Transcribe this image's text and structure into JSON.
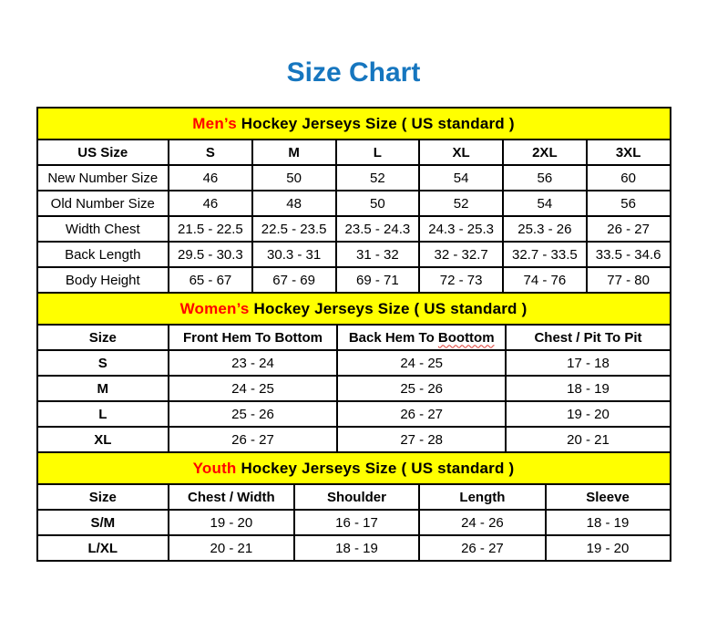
{
  "page": {
    "title": "Size Chart"
  },
  "colors": {
    "title_blue": "#1676bf",
    "banner_yellow": "#ffff00",
    "highlight_red": "#ff0000",
    "squiggle_red": "#dd3b33"
  },
  "tables": [
    {
      "id": "mens",
      "banner": {
        "highlight": "Men’s",
        "rest": " Hockey Jerseys Size ( US standard )"
      },
      "columns": [
        "US Size",
        "S",
        "M",
        "L",
        "XL",
        "2XL",
        "3XL"
      ],
      "rows": [
        {
          "label": "New Number Size",
          "values": [
            "46",
            "50",
            "52",
            "54",
            "56",
            "60"
          ]
        },
        {
          "label": "Old Number Size",
          "values": [
            "46",
            "48",
            "50",
            "52",
            "54",
            "56"
          ]
        },
        {
          "label": "Width Chest",
          "values": [
            "21.5 - 22.5",
            "22.5 - 23.5",
            "23.5 - 24.3",
            "24.3 - 25.3",
            "25.3 - 26",
            "26 - 27"
          ]
        },
        {
          "label": "Back Length",
          "values": [
            "29.5 - 30.3",
            "30.3 - 31",
            "31 - 32",
            "32 - 32.7",
            "32.7 - 33.5",
            "33.5 - 34.6"
          ]
        },
        {
          "label": "Body Height",
          "values": [
            "65 - 67",
            "67 - 69",
            "69 - 71",
            "72 - 73",
            "74 - 76",
            "77 - 80"
          ]
        }
      ]
    },
    {
      "id": "womens",
      "banner": {
        "highlight": "Women’s",
        "rest": " Hockey Jerseys Size ( US standard )"
      },
      "columns": [
        "Size",
        "Front Hem To Bottom",
        "Back Hem To Boottom",
        "Chest / Pit To Pit"
      ],
      "spellcheck_word": "Boottom",
      "rows": [
        {
          "label": "S",
          "values": [
            "23 - 24",
            "24 - 25",
            "17 - 18"
          ]
        },
        {
          "label": "M",
          "values": [
            "24 - 25",
            "25 - 26",
            "18 - 19"
          ]
        },
        {
          "label": "L",
          "values": [
            "25 - 26",
            "26 - 27",
            "19 - 20"
          ]
        },
        {
          "label": "XL",
          "values": [
            "26 - 27",
            "27 - 28",
            "20 - 21"
          ]
        }
      ]
    },
    {
      "id": "youth",
      "banner": {
        "highlight": "Youth",
        "rest": " Hockey Jerseys Size ( US standard )"
      },
      "columns": [
        "Size",
        "Chest / Width",
        "Shoulder",
        "Length",
        "Sleeve"
      ],
      "rows": [
        {
          "label": "S/M",
          "values": [
            "19 - 20",
            "16 - 17",
            "24 - 26",
            "18 - 19"
          ]
        },
        {
          "label": "L/XL",
          "values": [
            "20 - 21",
            "18 - 19",
            "26 - 27",
            "19 - 20"
          ]
        }
      ]
    }
  ]
}
